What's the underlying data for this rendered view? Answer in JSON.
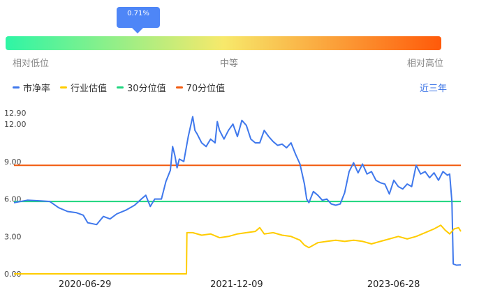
{
  "gauge": {
    "value_label": "0.71%",
    "percentile": 0.71,
    "low_label": "相对低位",
    "mid_label": "中等",
    "high_label": "相对高位",
    "colors": [
      "#2ef5a5",
      "#f7e96b",
      "#ff5a0a"
    ]
  },
  "period_link": "近三年",
  "chart_data": {
    "type": "line",
    "ylim": [
      0,
      12.9
    ],
    "yticks": [
      "0.00",
      "3.00",
      "6.00",
      "9.00",
      "12.00",
      "12.90"
    ],
    "xticks": [
      {
        "label": "2020-06-29",
        "frac": 0.1588
      },
      {
        "label": "2021-12-09",
        "frac": 0.4982
      },
      {
        "label": "2023-06-28",
        "frac": 0.8495
      }
    ],
    "legend": [
      "市净率",
      "行业估值",
      "30分位值",
      "70分位值"
    ],
    "colors": {
      "pb": "#3f78ec",
      "industry": "#ffcc00",
      "p30": "#1ed67e",
      "p70": "#f25a0e"
    },
    "p30": 5.8,
    "p70": 8.7,
    "series": [
      {
        "name": "市净率",
        "points": [
          [
            0.0,
            5.7
          ],
          [
            0.03,
            5.9
          ],
          [
            0.06,
            5.85
          ],
          [
            0.08,
            5.8
          ],
          [
            0.1,
            5.3
          ],
          [
            0.12,
            5.0
          ],
          [
            0.14,
            4.9
          ],
          [
            0.155,
            4.7
          ],
          [
            0.165,
            4.1
          ],
          [
            0.185,
            3.95
          ],
          [
            0.2,
            4.6
          ],
          [
            0.215,
            4.4
          ],
          [
            0.23,
            4.8
          ],
          [
            0.25,
            5.1
          ],
          [
            0.27,
            5.5
          ],
          [
            0.285,
            6.0
          ],
          [
            0.295,
            6.3
          ],
          [
            0.305,
            5.4
          ],
          [
            0.315,
            6.0
          ],
          [
            0.33,
            6.0
          ],
          [
            0.34,
            7.4
          ],
          [
            0.35,
            8.3
          ],
          [
            0.355,
            10.2
          ],
          [
            0.36,
            9.5
          ],
          [
            0.365,
            8.5
          ],
          [
            0.37,
            9.2
          ],
          [
            0.38,
            9.0
          ],
          [
            0.39,
            11.0
          ],
          [
            0.4,
            12.6
          ],
          [
            0.405,
            11.5
          ],
          [
            0.41,
            11.2
          ],
          [
            0.42,
            10.5
          ],
          [
            0.43,
            10.2
          ],
          [
            0.44,
            10.8
          ],
          [
            0.45,
            10.5
          ],
          [
            0.455,
            12.2
          ],
          [
            0.46,
            11.5
          ],
          [
            0.47,
            10.8
          ],
          [
            0.48,
            11.5
          ],
          [
            0.49,
            12.0
          ],
          [
            0.5,
            11.0
          ],
          [
            0.51,
            12.3
          ],
          [
            0.52,
            11.9
          ],
          [
            0.53,
            10.8
          ],
          [
            0.54,
            10.5
          ],
          [
            0.55,
            10.5
          ],
          [
            0.56,
            11.5
          ],
          [
            0.57,
            11.0
          ],
          [
            0.58,
            10.6
          ],
          [
            0.59,
            10.3
          ],
          [
            0.6,
            10.4
          ],
          [
            0.61,
            10.1
          ],
          [
            0.62,
            10.5
          ],
          [
            0.63,
            9.6
          ],
          [
            0.64,
            8.8
          ],
          [
            0.65,
            7.2
          ],
          [
            0.655,
            6.0
          ],
          [
            0.66,
            5.7
          ],
          [
            0.67,
            6.6
          ],
          [
            0.68,
            6.3
          ],
          [
            0.69,
            5.9
          ],
          [
            0.7,
            6.0
          ],
          [
            0.71,
            5.6
          ],
          [
            0.72,
            5.5
          ],
          [
            0.73,
            5.6
          ],
          [
            0.74,
            6.5
          ],
          [
            0.75,
            8.2
          ],
          [
            0.76,
            8.9
          ],
          [
            0.77,
            8.1
          ],
          [
            0.78,
            8.8
          ],
          [
            0.79,
            8.0
          ],
          [
            0.8,
            8.2
          ],
          [
            0.81,
            7.5
          ],
          [
            0.82,
            7.3
          ],
          [
            0.83,
            7.2
          ],
          [
            0.84,
            6.4
          ],
          [
            0.85,
            7.5
          ],
          [
            0.86,
            7.0
          ],
          [
            0.87,
            6.8
          ],
          [
            0.88,
            7.2
          ],
          [
            0.89,
            7.0
          ],
          [
            0.9,
            8.7
          ],
          [
            0.91,
            8.0
          ],
          [
            0.92,
            8.2
          ],
          [
            0.93,
            7.7
          ],
          [
            0.94,
            8.1
          ],
          [
            0.95,
            7.5
          ],
          [
            0.96,
            8.2
          ],
          [
            0.97,
            7.9
          ],
          [
            0.975,
            8.0
          ],
          [
            0.98,
            5.8
          ],
          [
            0.983,
            0.8
          ],
          [
            0.99,
            0.7
          ],
          [
            1.0,
            0.72
          ]
        ]
      },
      {
        "name": "行业估值",
        "points": [
          [
            0.0,
            0.0
          ],
          [
            0.386,
            0.0
          ],
          [
            0.387,
            3.3
          ],
          [
            0.4,
            3.3
          ],
          [
            0.42,
            3.1
          ],
          [
            0.44,
            3.2
          ],
          [
            0.46,
            2.9
          ],
          [
            0.48,
            3.0
          ],
          [
            0.5,
            3.2
          ],
          [
            0.52,
            3.3
          ],
          [
            0.54,
            3.4
          ],
          [
            0.55,
            3.7
          ],
          [
            0.56,
            3.2
          ],
          [
            0.58,
            3.3
          ],
          [
            0.6,
            3.1
          ],
          [
            0.62,
            3.0
          ],
          [
            0.64,
            2.7
          ],
          [
            0.65,
            2.3
          ],
          [
            0.66,
            2.1
          ],
          [
            0.68,
            2.5
          ],
          [
            0.7,
            2.6
          ],
          [
            0.72,
            2.7
          ],
          [
            0.74,
            2.6
          ],
          [
            0.76,
            2.7
          ],
          [
            0.78,
            2.6
          ],
          [
            0.8,
            2.4
          ],
          [
            0.82,
            2.6
          ],
          [
            0.84,
            2.8
          ],
          [
            0.86,
            3.0
          ],
          [
            0.88,
            2.8
          ],
          [
            0.9,
            3.0
          ],
          [
            0.92,
            3.3
          ],
          [
            0.94,
            3.6
          ],
          [
            0.955,
            3.9
          ],
          [
            0.965,
            3.5
          ],
          [
            0.975,
            3.2
          ],
          [
            0.985,
            3.6
          ],
          [
            0.995,
            3.7
          ],
          [
            1.0,
            3.4
          ]
        ]
      }
    ]
  }
}
